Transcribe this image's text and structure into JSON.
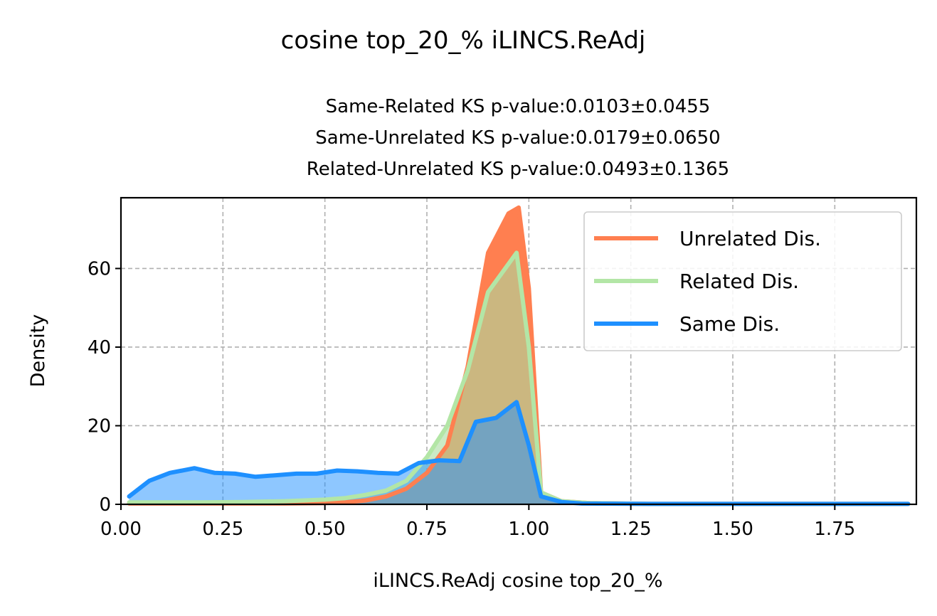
{
  "chart_data": {
    "type": "area",
    "suptitle": "cosine top_20_% iLINCS.ReAdj",
    "subtitle_lines": [
      "Same-Related KS p-value:0.0103±0.0455",
      "Same-Unrelated KS p-value:0.0179±0.0650",
      "Related-Unrelated KS p-value:0.0493±0.1365"
    ],
    "xlabel": "iLINCS.ReAdj cosine top_20_%",
    "ylabel": "Density",
    "xlim": [
      0,
      1.95
    ],
    "ylim": [
      0,
      78
    ],
    "xticks": [
      0.0,
      0.25,
      0.5,
      0.75,
      1.0,
      1.25,
      1.5,
      1.75
    ],
    "xtick_labels": [
      "0.00",
      "0.25",
      "0.50",
      "0.75",
      "1.00",
      "1.25",
      "1.50",
      "1.75"
    ],
    "yticks": [
      0,
      20,
      40,
      60
    ],
    "ytick_labels": [
      "0",
      "20",
      "40",
      "60"
    ],
    "grid": true,
    "legend_position": "upper-right",
    "series": [
      {
        "name": "Unrelated Dis.",
        "line_color": "#ff7f50",
        "fill_color": "#ff7f50",
        "fill_opacity": 1.0,
        "points": [
          [
            0.02,
            0.2
          ],
          [
            0.1,
            0.2
          ],
          [
            0.2,
            0.2
          ],
          [
            0.3,
            0.2
          ],
          [
            0.4,
            0.2
          ],
          [
            0.5,
            0.3
          ],
          [
            0.55,
            0.5
          ],
          [
            0.6,
            1.0
          ],
          [
            0.65,
            2.0
          ],
          [
            0.7,
            4.0
          ],
          [
            0.75,
            8.0
          ],
          [
            0.8,
            15.0
          ],
          [
            0.85,
            35.0
          ],
          [
            0.9,
            64.0
          ],
          [
            0.95,
            74.0
          ],
          [
            0.975,
            75.5
          ],
          [
            1.0,
            55.0
          ],
          [
            1.03,
            3.0
          ],
          [
            1.08,
            0.8
          ],
          [
            1.15,
            0.3
          ],
          [
            1.3,
            0.1
          ],
          [
            1.5,
            0.1
          ],
          [
            1.75,
            0.1
          ],
          [
            1.93,
            0.1
          ]
        ]
      },
      {
        "name": "Related Dis.",
        "line_color": "#b3e6a6",
        "fill_color": "#a8dca0",
        "fill_opacity": 0.6,
        "points": [
          [
            0.02,
            0.5
          ],
          [
            0.1,
            0.5
          ],
          [
            0.2,
            0.5
          ],
          [
            0.3,
            0.6
          ],
          [
            0.4,
            0.8
          ],
          [
            0.5,
            1.2
          ],
          [
            0.55,
            1.6
          ],
          [
            0.6,
            2.4
          ],
          [
            0.65,
            3.5
          ],
          [
            0.7,
            6.0
          ],
          [
            0.75,
            12.0
          ],
          [
            0.8,
            20.0
          ],
          [
            0.85,
            34.0
          ],
          [
            0.9,
            54.0
          ],
          [
            0.97,
            64.0
          ],
          [
            1.0,
            40.0
          ],
          [
            1.03,
            3.0
          ],
          [
            1.08,
            0.8
          ],
          [
            1.15,
            0.3
          ],
          [
            1.3,
            0.1
          ],
          [
            1.5,
            0.1
          ],
          [
            1.75,
            0.1
          ],
          [
            1.93,
            0.1
          ]
        ]
      },
      {
        "name": "Same Dis.",
        "line_color": "#1e90ff",
        "fill_color": "#1e90ff",
        "fill_opacity": 0.5,
        "points": [
          [
            0.02,
            2.0
          ],
          [
            0.07,
            6.0
          ],
          [
            0.12,
            8.0
          ],
          [
            0.18,
            9.2
          ],
          [
            0.23,
            8.0
          ],
          [
            0.28,
            7.8
          ],
          [
            0.33,
            7.0
          ],
          [
            0.38,
            7.4
          ],
          [
            0.43,
            7.8
          ],
          [
            0.48,
            7.8
          ],
          [
            0.53,
            8.6
          ],
          [
            0.58,
            8.4
          ],
          [
            0.63,
            8.0
          ],
          [
            0.68,
            7.8
          ],
          [
            0.73,
            10.5
          ],
          [
            0.78,
            11.2
          ],
          [
            0.83,
            11.0
          ],
          [
            0.87,
            21.0
          ],
          [
            0.92,
            22.0
          ],
          [
            0.97,
            26.0
          ],
          [
            1.0,
            15.0
          ],
          [
            1.03,
            2.0
          ],
          [
            1.08,
            0.6
          ],
          [
            1.13,
            0.2
          ],
          [
            1.3,
            0.1
          ],
          [
            1.5,
            0.1
          ],
          [
            1.75,
            0.1
          ],
          [
            1.93,
            0.1
          ]
        ]
      }
    ]
  }
}
